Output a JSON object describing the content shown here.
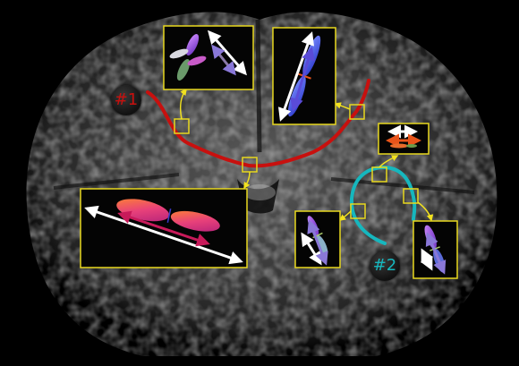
{
  "tracts": [
    {
      "label": "#1",
      "color": "#c8100e"
    },
    {
      "label": "#2",
      "color": "#16b7be"
    }
  ],
  "colors": {
    "background": "#000000",
    "roi_box": "#e8d81e",
    "callout_arrow": "#f2e21f",
    "fiber_arrow": "#ffffff"
  }
}
